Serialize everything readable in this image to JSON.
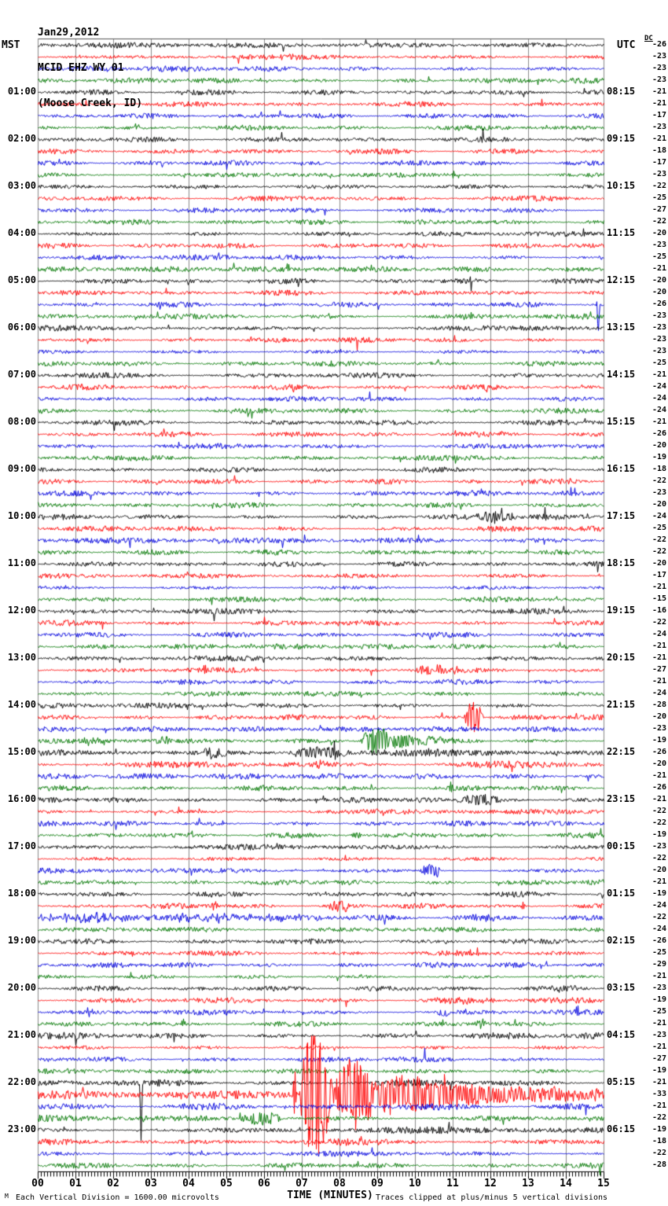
{
  "title": {
    "date": "Jan29,2012",
    "station": "MCID EHZ WY 01",
    "location": "(Moose Creek, ID)"
  },
  "axis": {
    "left_header": "MST",
    "right_header": "UTC",
    "dc_header": "DC",
    "xlabel": "TIME (MINUTES)",
    "x_ticks": [
      "00",
      "01",
      "02",
      "03",
      "04",
      "05",
      "06",
      "07",
      "08",
      "09",
      "10",
      "11",
      "12",
      "13",
      "14",
      "15"
    ],
    "footer_left": "Each Vertical Division = 1600.00 microvolts",
    "footer_right": "Traces clipped at plus/minus 5 vertical divisions",
    "corner_mark": "M"
  },
  "chart_data": {
    "type": "line",
    "subtype": "helicorder-seismogram",
    "station": "MCID EHZ WY 01 (Moose Creek, ID)",
    "rows": 96,
    "minutes_per_row": 15,
    "x_range_minutes": [
      0,
      15
    ],
    "label_every_n_rows": 4,
    "row_color_cycle": [
      "#000000",
      "#ff0000",
      "#0000dd",
      "#007700"
    ],
    "grid_color": "#8a8a8a",
    "frame_color": "#555555",
    "clip_divisions": 5,
    "left_labels": [
      "01:00",
      "02:00",
      "03:00",
      "04:00",
      "05:00",
      "06:00",
      "07:00",
      "08:00",
      "09:00",
      "10:00",
      "11:00",
      "12:00",
      "13:00",
      "14:00",
      "15:00",
      "16:00",
      "17:00",
      "18:00",
      "19:00",
      "20:00",
      "21:00",
      "22:00",
      "23:00"
    ],
    "right_labels": [
      "08:15",
      "09:15",
      "10:15",
      "11:15",
      "12:15",
      "13:15",
      "14:15",
      "15:15",
      "16:15",
      "17:15",
      "18:15",
      "19:15",
      "20:15",
      "21:15",
      "22:15",
      "23:15",
      "00:15",
      "01:15",
      "02:15",
      "03:15",
      "04:15",
      "05:15",
      "06:15"
    ],
    "dc_offsets": [
      -26,
      -23,
      -23,
      -23,
      -21,
      -21,
      -17,
      -23,
      -21,
      -18,
      -17,
      -23,
      -22,
      -25,
      -27,
      -22,
      -20,
      -23,
      -25,
      -21,
      -20,
      -20,
      -26,
      -23,
      -23,
      -23,
      -23,
      -25,
      -21,
      -24,
      -24,
      -24,
      -21,
      -26,
      -20,
      -19,
      -18,
      -22,
      -23,
      -20,
      -24,
      -25,
      -22,
      -22,
      -20,
      -17,
      -21,
      -15,
      -16,
      -22,
      -24,
      -21,
      -21,
      -27,
      -21,
      -24,
      -28,
      -20,
      -23,
      -19,
      -26,
      -20,
      -21,
      -26,
      -21,
      -22,
      -22,
      -19,
      -23,
      -22,
      -20,
      -21,
      -19,
      -24,
      -22,
      -24,
      -26,
      -25,
      -29,
      -21,
      -23,
      -19,
      -25,
      -21,
      -23,
      -21,
      -27,
      -19,
      -21,
      -33,
      -21,
      -22,
      -19,
      -18,
      -22,
      -28
    ],
    "noise_default": 1.5,
    "noise_overrides": {
      "60": 2.0,
      "61": 2.0,
      "74": 1.9,
      "84": 1.8,
      "88": 1.8,
      "89": 2.2,
      "90": 1.9,
      "91": 1.8,
      "92": 1.9,
      "93": 1.8
    },
    "events": {
      "2": [
        [
          "burst",
          3.25,
          3.45,
          4
        ]
      ],
      "11": [
        [
          "spike",
          11.0,
          0,
          6
        ]
      ],
      "19": [
        [
          "spike",
          6.62,
          0,
          8
        ]
      ],
      "22": [
        [
          "spike",
          14.82,
          0,
          6
        ],
        [
          "spike_down",
          14.85,
          0,
          38
        ]
      ],
      "40": [
        [
          "burst",
          11.6,
          12.7,
          7
        ],
        [
          "spike",
          13.45,
          0,
          13
        ]
      ],
      "53": [
        [
          "spike",
          4.42,
          0,
          10
        ],
        [
          "burst",
          9.9,
          11.2,
          5
        ]
      ],
      "57": [
        [
          "burst",
          11.3,
          11.8,
          22
        ]
      ],
      "59": [
        [
          "burst",
          1.2,
          1.6,
          5
        ],
        [
          "burst",
          3.1,
          3.5,
          5
        ],
        [
          "burst",
          8.55,
          9.4,
          18
        ],
        [
          "decay",
          9.4,
          11.8,
          9
        ]
      ],
      "60": [
        [
          "burst",
          4.3,
          5.1,
          6
        ],
        [
          "burst",
          6.6,
          8.3,
          7
        ],
        [
          "spike",
          7.85,
          0,
          14
        ]
      ],
      "61": [
        [
          "burst",
          7.3,
          7.7,
          5
        ]
      ],
      "63": [
        [
          "spike",
          10.95,
          0,
          8
        ]
      ],
      "64": [
        [
          "burst",
          11.1,
          12.3,
          7
        ]
      ],
      "67": [
        [
          "burst",
          8.3,
          8.6,
          4
        ]
      ],
      "70": [
        [
          "burst",
          10.1,
          10.7,
          8
        ]
      ],
      "73": [
        [
          "burst",
          4.5,
          4.8,
          5
        ],
        [
          "burst",
          7.7,
          8.3,
          7
        ],
        [
          "spike",
          12.85,
          0,
          7
        ]
      ],
      "74": [
        [
          "elev",
          0,
          7.5,
          2.5
        ]
      ],
      "81": [
        [
          "burst",
          10.1,
          12.2,
          3
        ]
      ],
      "82": [
        [
          "burst",
          10.55,
          10.9,
          7
        ],
        [
          "spike",
          14.3,
          0,
          8
        ]
      ],
      "83": [
        [
          "spike",
          3.85,
          0,
          7
        ],
        [
          "burst",
          11.55,
          11.9,
          6
        ]
      ],
      "88": [
        [
          "spike_down",
          2.73,
          0,
          72
        ]
      ],
      "89": [
        [
          "spike",
          6.8,
          0,
          40
        ],
        [
          "burst",
          6.93,
          7.8,
          90
        ],
        [
          "burst",
          7.8,
          9.0,
          45
        ],
        [
          "decay",
          9.0,
          15.0,
          26
        ]
      ],
      "91": [
        [
          "burst",
          5.3,
          6.5,
          8
        ]
      ]
    }
  }
}
